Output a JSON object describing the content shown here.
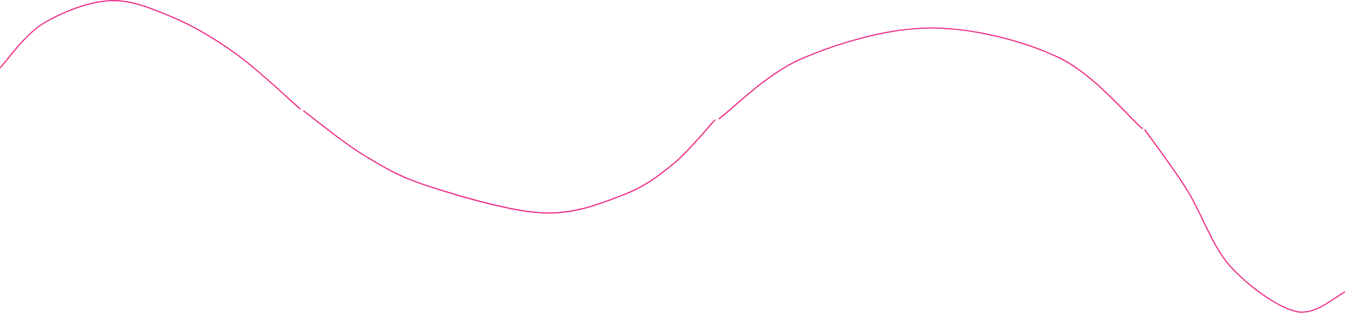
{
  "decoration": {
    "line_color": "#ee1f7f",
    "background_color": "#ffffff"
  }
}
